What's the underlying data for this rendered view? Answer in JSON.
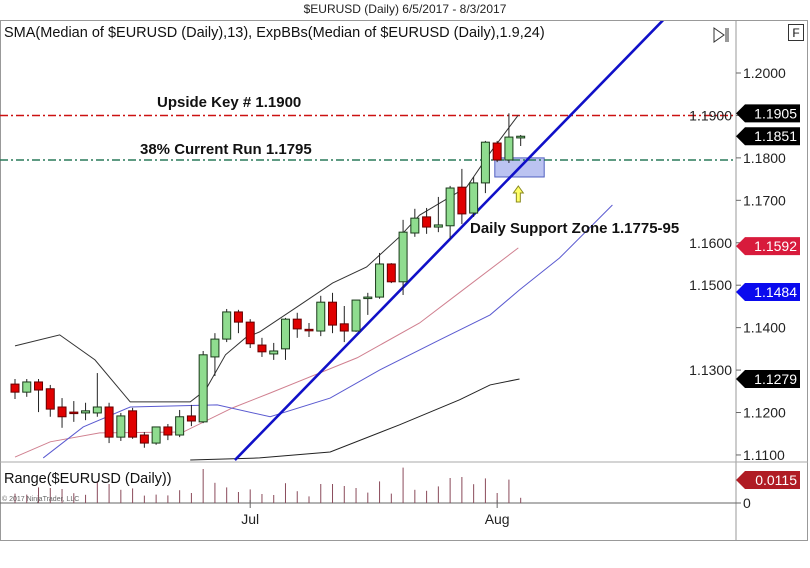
{
  "title": "$EURUSD (Daily)  6/5/2017 - 8/3/2017",
  "indicator_label": "SMA(Median of $EURUSD (Daily),13), ExpBBs(Median of $EURUSD (Daily),1.9,24)",
  "range_label": "Range($EURUSD (Daily))",
  "copyright": "© 2017 NinjaTrader, LLC",
  "toolbar": {
    "scroll_end_icon": "scroll-to-end-icon",
    "f_button": "F"
  },
  "colors": {
    "up": "#8fdc8f",
    "down": "#e00000",
    "trendline": "#1010c8",
    "upper_band": "#333333",
    "mid_pink": "#d08090",
    "mid_blue": "#5a5ad0",
    "lower_band": "#222222",
    "resistance": "#cc1111",
    "support": "#2a7a5a",
    "zone": "#aab4ee",
    "arrow": "#ffff66",
    "range_bar": "#8a4a5a"
  },
  "annotations": {
    "upside_key": "Upside Key # 1.1900",
    "current_run": "38% Current Run 1.1795",
    "support_zone": "Daily Support Zone 1.1775-95"
  },
  "price_tags": [
    {
      "value": "1.1905",
      "price": 1.1905,
      "color": "#000000"
    },
    {
      "value": "1.1851",
      "price": 1.1851,
      "color": "#000000"
    },
    {
      "value": "1.1592",
      "price": 1.1592,
      "color": "#d81b3c"
    },
    {
      "value": "1.1484",
      "price": 1.1484,
      "color": "#0a0aee"
    },
    {
      "value": "1.1279",
      "price": 1.1279,
      "color": "#000000"
    }
  ],
  "range_tag": {
    "value": "0.0115",
    "color": "#b01c24"
  },
  "chart_data": {
    "type": "candlestick",
    "title": "$EURUSD (Daily)  6/5/2017 - 8/3/2017",
    "ylim": [
      1.1085,
      1.212
    ],
    "y_ticks": [
      "1.2000",
      "1.1900",
      "1.1800",
      "1.1700",
      "1.1600",
      "1.1500",
      "1.1400",
      "1.1300",
      "1.1200",
      "1.1100"
    ],
    "x_ticks": [
      {
        "label": "Jul",
        "bar": 21
      },
      {
        "label": "Aug",
        "bar": 42
      }
    ],
    "range_ticks": [
      "0"
    ],
    "ohlc": [
      [
        1.1267,
        1.1279,
        1.1232,
        1.1248
      ],
      [
        1.1248,
        1.1279,
        1.1237,
        1.1272
      ],
      [
        1.1272,
        1.1279,
        1.1201,
        1.1253
      ],
      [
        1.1256,
        1.1265,
        1.119,
        1.1208
      ],
      [
        1.1213,
        1.1234,
        1.1164,
        1.119
      ],
      [
        1.1201,
        1.1227,
        1.1178,
        1.1199
      ],
      [
        1.1199,
        1.1223,
        1.1182,
        1.1204
      ],
      [
        1.1199,
        1.1293,
        1.119,
        1.1213
      ],
      [
        1.1213,
        1.1223,
        1.1128,
        1.1142
      ],
      [
        1.1142,
        1.1199,
        1.1133,
        1.1192
      ],
      [
        1.1204,
        1.1211,
        1.1138,
        1.1142
      ],
      [
        1.1147,
        1.1154,
        1.1117,
        1.1128
      ],
      [
        1.1128,
        1.1166,
        1.1124,
        1.1166
      ],
      [
        1.1166,
        1.1173,
        1.1135,
        1.1147
      ],
      [
        1.1147,
        1.1206,
        1.1142,
        1.119
      ],
      [
        1.1192,
        1.1218,
        1.1168,
        1.118
      ],
      [
        1.1178,
        1.1345,
        1.1175,
        1.1336
      ],
      [
        1.1331,
        1.1387,
        1.1286,
        1.1373
      ],
      [
        1.1373,
        1.1444,
        1.1366,
        1.1437
      ],
      [
        1.1437,
        1.1442,
        1.1387,
        1.1413
      ],
      [
        1.1413,
        1.142,
        1.1352,
        1.1362
      ],
      [
        1.1359,
        1.1376,
        1.1331,
        1.1343
      ],
      [
        1.1338,
        1.1364,
        1.1324,
        1.1345
      ],
      [
        1.135,
        1.1423,
        1.1324,
        1.142
      ],
      [
        1.142,
        1.1435,
        1.1376,
        1.1397
      ],
      [
        1.1396,
        1.1411,
        1.1378,
        1.1395
      ],
      [
        1.1392,
        1.1475,
        1.138,
        1.146
      ],
      [
        1.146,
        1.1482,
        1.1387,
        1.1406
      ],
      [
        1.1409,
        1.1451,
        1.1366,
        1.1392
      ],
      [
        1.1392,
        1.1465,
        1.139,
        1.1465
      ],
      [
        1.147,
        1.1482,
        1.143,
        1.1472
      ],
      [
        1.1472,
        1.1576,
        1.1468,
        1.155
      ],
      [
        1.155,
        1.1552,
        1.1505,
        1.1508
      ],
      [
        1.1508,
        1.1654,
        1.1477,
        1.1625
      ],
      [
        1.1623,
        1.168,
        1.1614,
        1.1658
      ],
      [
        1.1661,
        1.1682,
        1.1621,
        1.1637
      ],
      [
        1.1637,
        1.1708,
        1.1625,
        1.1642
      ],
      [
        1.164,
        1.1734,
        1.1609,
        1.1729
      ],
      [
        1.1731,
        1.1774,
        1.1644,
        1.1668
      ],
      [
        1.167,
        1.1755,
        1.1661,
        1.1741
      ],
      [
        1.1741,
        1.184,
        1.1717,
        1.1837
      ],
      [
        1.1835,
        1.184,
        1.179,
        1.1795
      ],
      [
        1.1795,
        1.1905,
        1.1788,
        1.1849
      ],
      [
        1.1847,
        1.1854,
        1.1828,
        1.1851
      ]
    ],
    "lines": [
      {
        "key": "upper_band",
        "points": [
          [
            1,
            1.1357
          ],
          [
            4.8,
            1.1383
          ],
          [
            7.8,
            1.1324
          ],
          [
            10.8,
            1.1225
          ],
          [
            15.9,
            1.1225
          ],
          [
            17.2,
            1.1253
          ],
          [
            18.9,
            1.1336
          ],
          [
            20.6,
            1.1376
          ],
          [
            21.8,
            1.139
          ],
          [
            25,
            1.1449
          ],
          [
            28,
            1.1505
          ],
          [
            30.9,
            1.1543
          ],
          [
            33.7,
            1.1614
          ],
          [
            35.4,
            1.1665
          ],
          [
            39.4,
            1.1731
          ],
          [
            41.4,
            1.1812
          ],
          [
            43.8,
            1.1901
          ]
        ]
      },
      {
        "key": "mid_pink",
        "points": [
          [
            1,
            1.1095
          ],
          [
            4,
            1.1131
          ],
          [
            8.2,
            1.1152
          ],
          [
            15.3,
            1.1154
          ],
          [
            19.5,
            1.1211
          ],
          [
            22.7,
            1.1246
          ],
          [
            30.1,
            1.1329
          ],
          [
            35.4,
            1.1411
          ],
          [
            38.2,
            1.147
          ],
          [
            43.8,
            1.1588
          ]
        ]
      },
      {
        "key": "mid_blue",
        "points": [
          [
            3.4,
            1.1093
          ],
          [
            6.8,
            1.1166
          ],
          [
            10.8,
            1.1213
          ],
          [
            18.2,
            1.1218
          ],
          [
            22.7,
            1.119
          ],
          [
            27.8,
            1.1234
          ],
          [
            32,
            1.13
          ],
          [
            37.1,
            1.1371
          ],
          [
            41.4,
            1.143
          ],
          [
            43.9,
            1.1489
          ],
          [
            47.3,
            1.1564
          ],
          [
            51.8,
            1.1689
          ]
        ]
      },
      {
        "key": "lower_band",
        "points": [
          [
            15.9,
            1.1088
          ],
          [
            21.8,
            1.1093
          ],
          [
            27.8,
            1.1107
          ],
          [
            33.7,
            1.1171
          ],
          [
            38.8,
            1.123
          ],
          [
            41.4,
            1.1265
          ],
          [
            43.9,
            1.1279
          ]
        ]
      }
    ],
    "trendline": [
      [
        19.7,
        1.1088
      ],
      [
        56.3,
        1.213
      ]
    ],
    "horizontal_lines": [
      {
        "key": "resistance",
        "price": 1.19
      },
      {
        "key": "support",
        "price": 1.1795
      }
    ],
    "support_zone": {
      "from_bar": 41.8,
      "to_bar": 46,
      "low": 1.1755,
      "high": 1.18
    },
    "arrow_bar": 43.8
  }
}
